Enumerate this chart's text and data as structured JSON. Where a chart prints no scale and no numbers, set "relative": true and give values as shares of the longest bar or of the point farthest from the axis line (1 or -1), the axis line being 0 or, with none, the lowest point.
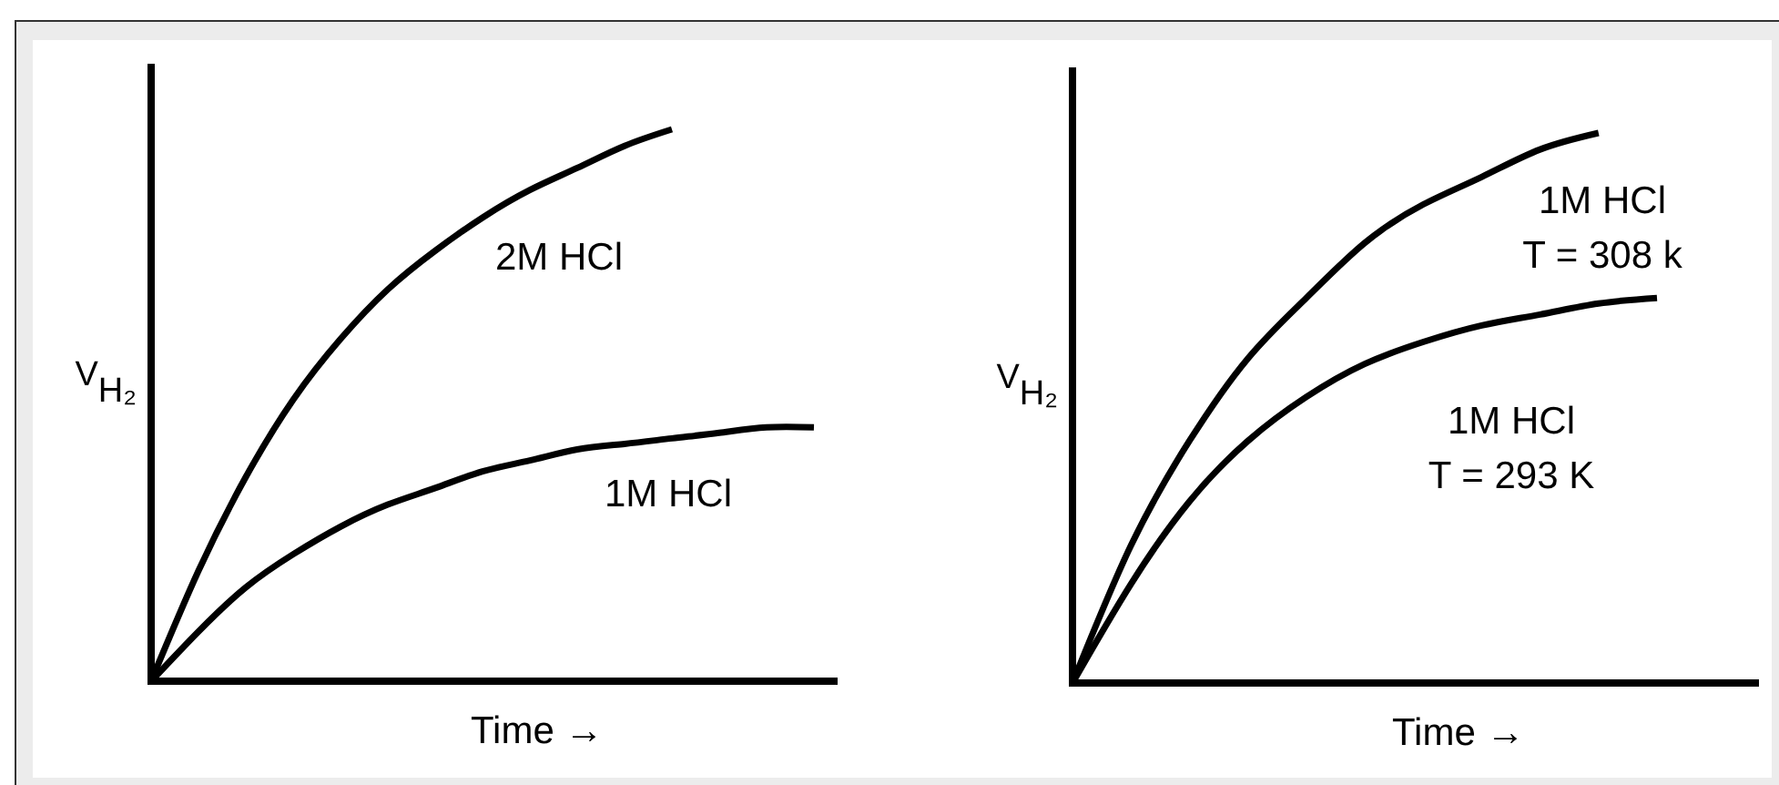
{
  "chart_data": [
    {
      "type": "line",
      "relative": true,
      "xlabel": "Time →",
      "ylabel": "V$_{H₂}$",
      "categories": [
        null,
        null,
        null,
        null,
        null,
        null,
        null,
        null,
        null,
        null,
        null,
        null,
        null,
        null,
        null
      ],
      "series": [
        {
          "name": "2M HCl",
          "color": "#000000",
          "values": [
            0,
            0.2,
            0.37,
            0.51,
            0.62,
            0.71,
            0.78,
            0.84,
            0.89,
            0.93,
            0.97,
            1.0,
            null,
            null,
            null
          ]
        },
        {
          "name": "1M HCl",
          "color": "#000000",
          "values": [
            0,
            0.09,
            0.17,
            0.23,
            0.28,
            0.32,
            0.35,
            0.38,
            0.4,
            0.42,
            0.43,
            0.44,
            0.45,
            0.46,
            0.46
          ]
        }
      ]
    },
    {
      "type": "line",
      "relative": true,
      "xlabel": "Time →",
      "ylabel": "V$_{H₂}$",
      "categories": [
        null,
        null,
        null,
        null,
        null,
        null,
        null,
        null,
        null,
        null,
        null
      ],
      "series": [
        {
          "name": "1M HCl\nT = 308 k",
          "color": "#000000",
          "values": [
            0,
            0.25,
            0.44,
            0.59,
            0.7,
            0.8,
            0.87,
            0.92,
            0.97,
            1.0,
            null
          ]
        },
        {
          "name": "1M HCl\nT = 293 K",
          "color": "#000000",
          "values": [
            0,
            0.18,
            0.33,
            0.44,
            0.52,
            0.58,
            0.62,
            0.65,
            0.67,
            0.69,
            0.7
          ]
        }
      ]
    }
  ]
}
